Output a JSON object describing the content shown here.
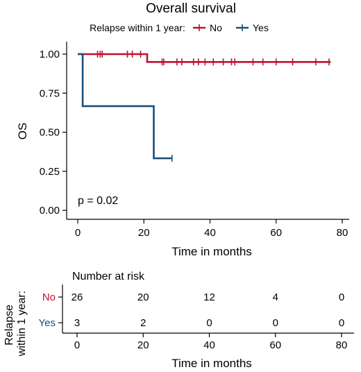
{
  "chart_data": [
    {
      "type": "line",
      "subtype": "kaplan-meier",
      "title": "Overall survival",
      "legend": {
        "title": "Relapse within 1 year:",
        "position": "top"
      },
      "xlabel": "Time in months",
      "ylabel": "OS",
      "xlim": [
        0,
        80
      ],
      "ylim": [
        0,
        1
      ],
      "x_ticks": [
        "0",
        "20",
        "40",
        "60",
        "80"
      ],
      "y_ticks": [
        "0.00",
        "0.25",
        "0.50",
        "0.75",
        "1.00"
      ],
      "grid": false,
      "annotation": "p = 0.02",
      "series": [
        {
          "name": "No",
          "color": "#c0102e",
          "steps": [
            [
              0,
              1.0
            ],
            [
              21,
              1.0
            ],
            [
              21,
              0.95
            ],
            [
              76.5,
              0.95
            ]
          ],
          "censor_times": [
            6,
            6.8,
            7.4,
            15,
            16.5,
            19,
            25.5,
            26,
            30,
            31.5,
            35,
            36.5,
            38.5,
            41,
            44,
            46.5,
            47.5,
            53,
            56,
            60,
            65,
            72,
            76
          ]
        },
        {
          "name": "Yes",
          "color": "#1a4f7a",
          "steps": [
            [
              0,
              1.0
            ],
            [
              1.5,
              1.0
            ],
            [
              1.5,
              0.667
            ],
            [
              23,
              0.667
            ],
            [
              23,
              0.333
            ],
            [
              28.5,
              0.333
            ]
          ],
          "censor_times": [
            28.5
          ]
        }
      ]
    },
    {
      "type": "table",
      "title": "Number at risk",
      "ylabel": "Relapse within 1 year:",
      "xlabel": "Time in months",
      "x_ticks": [
        "0",
        "20",
        "40",
        "60",
        "80"
      ],
      "rows": [
        {
          "name": "No",
          "color": "#c0102e",
          "values": [
            "26",
            "20",
            "12",
            "4",
            "0"
          ]
        },
        {
          "name": "Yes",
          "color": "#1a4f7a",
          "values": [
            "3",
            "2",
            "0",
            "0",
            "0"
          ]
        }
      ]
    }
  ]
}
